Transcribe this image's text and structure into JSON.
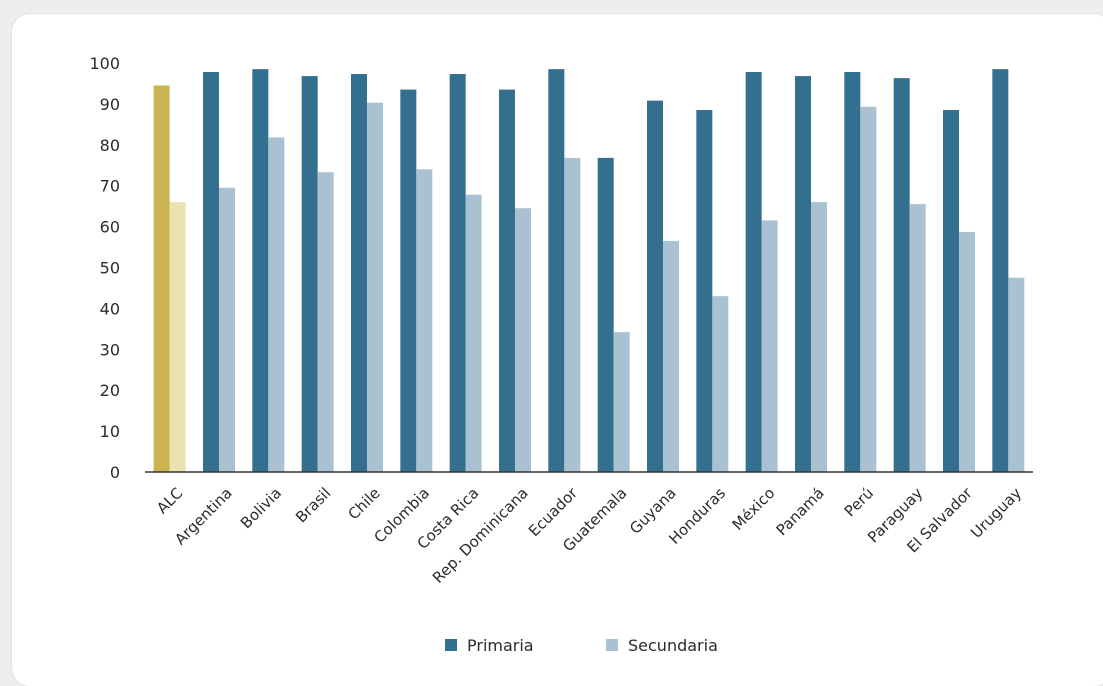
{
  "chart_data": {
    "type": "bar",
    "categories": [
      "ALC",
      "Argentina",
      "Bolivia",
      "Brasil",
      "Chile",
      "Colombia",
      "Costa Rica",
      "Rep. Dominicana",
      "Ecuador",
      "Guatemala",
      "Guyana",
      "Honduras",
      "México",
      "Panamá",
      "Perú",
      "Paraguay",
      "El Salvador",
      "Uruguay"
    ],
    "series": [
      {
        "name": "Primaria",
        "values": [
          94.5,
          97.8,
          98.5,
          96.8,
          97.3,
          93.5,
          97.3,
          93.5,
          98.5,
          76.8,
          90.8,
          88.5,
          97.8,
          96.8,
          97.8,
          96.3,
          88.5,
          98.5
        ]
      },
      {
        "name": "Secundaria",
        "values": [
          66,
          69.5,
          81.8,
          73.3,
          90.3,
          74,
          67.8,
          64.5,
          76.8,
          34.2,
          56.5,
          43,
          61.5,
          66,
          89.3,
          65.5,
          58.7,
          47.5
        ]
      }
    ],
    "ylim": [
      0,
      100
    ],
    "yticks": [
      0,
      10,
      20,
      30,
      40,
      50,
      60,
      70,
      80,
      90,
      100
    ],
    "colors": {
      "Primaria": "#336f8e",
      "Secundaria": "#a9c1d0",
      "highlight_primaria": "#c9b44f",
      "highlight_secundaria": "#ebe2b1"
    },
    "highlight_category": "ALC",
    "legend_position": "bottom-center",
    "grid": false
  }
}
